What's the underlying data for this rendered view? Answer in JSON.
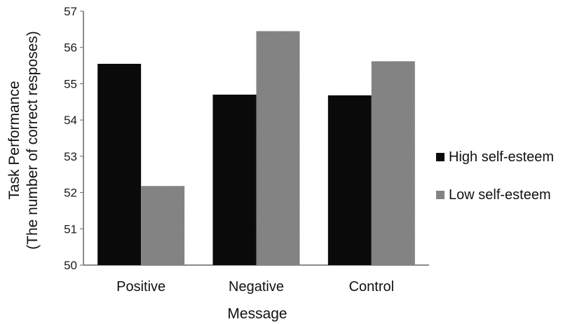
{
  "chart_data": {
    "type": "bar",
    "categories": [
      "Positive",
      "Negative",
      "Control"
    ],
    "series": [
      {
        "name": "High self-esteem",
        "values": [
          55.55,
          54.7,
          54.68
        ],
        "color": "#0a0a0a"
      },
      {
        "name": "Low self-esteem",
        "values": [
          52.18,
          56.45,
          55.62
        ],
        "color": "#8c8c8c"
      }
    ],
    "title": "",
    "xlabel": "Message",
    "ylabel_line1": "Task Performance",
    "ylabel_line2": "(The number of correct resposes)",
    "ylim": [
      50,
      57
    ],
    "yticks": [
      "50",
      "51",
      "52",
      "53",
      "54",
      "55",
      "56",
      "57"
    ],
    "grid": false,
    "legend": "right"
  }
}
